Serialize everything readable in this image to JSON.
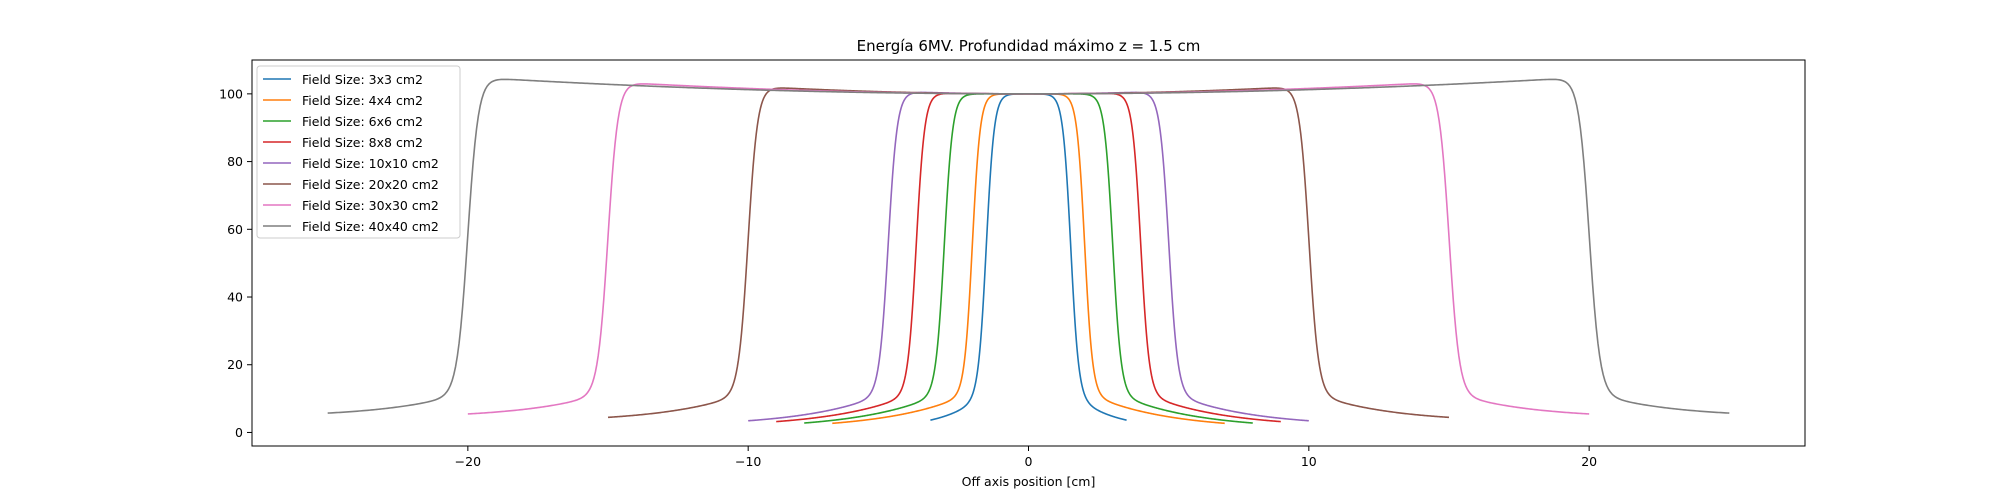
{
  "chart_data": {
    "type": "line",
    "title": "Energía 6MV. Profundidad máximo z = 1.5 cm",
    "xlabel": "Off axis position [cm]",
    "ylabel": "",
    "xlim": [
      -27.7,
      27.7
    ],
    "ylim": [
      -4,
      110
    ],
    "xticks": [
      -20,
      -10,
      0,
      10,
      20
    ],
    "xtick_labels": [
      "−20",
      "−10",
      "0",
      "10",
      "20"
    ],
    "yticks": [
      0,
      20,
      40,
      60,
      80,
      100
    ],
    "ytick_labels": [
      "0",
      "20",
      "40",
      "60",
      "80",
      "100"
    ],
    "grid": false,
    "legend_position": "top-left",
    "series": [
      {
        "name": "Field Size: 3x3 cm2",
        "color": "#1f77b4",
        "half_width": 1.5,
        "x_extent": 3.5,
        "tail": 1.0,
        "horn": 0.0,
        "penumbra_scale": 0.14
      },
      {
        "name": "Field Size: 4x4 cm2",
        "color": "#ff7f0e",
        "half_width": 2.0,
        "x_extent": 7.0,
        "tail": 0.9,
        "horn": 0.0,
        "penumbra_scale": 0.14
      },
      {
        "name": "Field Size: 6x6 cm2",
        "color": "#2ca02c",
        "half_width": 3.0,
        "x_extent": 8.0,
        "tail": 1.0,
        "horn": 0.0,
        "penumbra_scale": 0.15
      },
      {
        "name": "Field Size: 8x8 cm2",
        "color": "#d62728",
        "half_width": 4.0,
        "x_extent": 9.0,
        "tail": 1.5,
        "horn": 0.3,
        "penumbra_scale": 0.15
      },
      {
        "name": "Field Size: 10x10 cm2",
        "color": "#9467bd",
        "half_width": 5.0,
        "x_extent": 10.0,
        "tail": 1.8,
        "horn": 0.8,
        "penumbra_scale": 0.16
      },
      {
        "name": "Field Size: 20x20 cm2",
        "color": "#8c564b",
        "half_width": 10.0,
        "x_extent": 15.0,
        "tail": 3.0,
        "horn": 2.3,
        "penumbra_scale": 0.17
      },
      {
        "name": "Field Size: 30x30 cm2",
        "color": "#e377c2",
        "half_width": 15.0,
        "x_extent": 20.0,
        "tail": 4.2,
        "horn": 3.6,
        "penumbra_scale": 0.18
      },
      {
        "name": "Field Size: 40x40 cm2",
        "color": "#7f7f7f",
        "half_width": 20.0,
        "x_extent": 25.0,
        "tail": 4.5,
        "horn": 5.0,
        "penumbra_scale": 0.19
      }
    ]
  }
}
